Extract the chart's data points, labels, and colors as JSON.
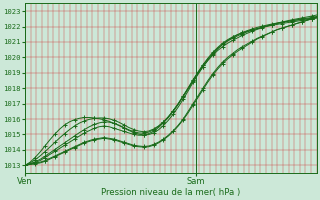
{
  "xlabel": "Pression niveau de la mer( hPa )",
  "ylim": [
    1012.5,
    1023.5
  ],
  "yticks": [
    1013,
    1014,
    1015,
    1016,
    1017,
    1018,
    1019,
    1020,
    1021,
    1022,
    1023
  ],
  "xtick_labels": [
    "Ven",
    "Sam"
  ],
  "xtick_positions": [
    0.0,
    0.585
  ],
  "vline_x": [
    0.0,
    0.585
  ],
  "background_color": "#cce8d8",
  "grid_color": "#cc3333",
  "line_color": "#1a6b1a",
  "series": [
    [
      1013.0,
      1013.05,
      1013.1,
      1013.15,
      1013.25,
      1013.4,
      1013.55,
      1013.7,
      1013.85,
      1014.0,
      1014.15,
      1014.3,
      1014.45,
      1014.55,
      1014.65,
      1014.7,
      1014.75,
      1014.7,
      1014.65,
      1014.55,
      1014.45,
      1014.35,
      1014.25,
      1014.2,
      1014.18,
      1014.2,
      1014.3,
      1014.45,
      1014.65,
      1014.9,
      1015.2,
      1015.55,
      1015.95,
      1016.4,
      1016.9,
      1017.4,
      1017.9,
      1018.4,
      1018.85,
      1019.25,
      1019.6,
      1019.9,
      1020.15,
      1020.4,
      1020.6,
      1020.8,
      1021.0,
      1021.2,
      1021.35,
      1021.5,
      1021.65,
      1021.8,
      1021.9,
      1022.0,
      1022.1,
      1022.2,
      1022.3,
      1022.4,
      1022.5,
      1022.6
    ],
    [
      1013.0,
      1013.06,
      1013.12,
      1013.2,
      1013.3,
      1013.45,
      1013.6,
      1013.75,
      1013.9,
      1014.05,
      1014.2,
      1014.35,
      1014.5,
      1014.6,
      1014.7,
      1014.75,
      1014.8,
      1014.75,
      1014.7,
      1014.6,
      1014.5,
      1014.4,
      1014.3,
      1014.25,
      1014.22,
      1014.25,
      1014.35,
      1014.5,
      1014.7,
      1014.95,
      1015.25,
      1015.6,
      1016.0,
      1016.5,
      1017.0,
      1017.5,
      1018.0,
      1018.5,
      1018.95,
      1019.35,
      1019.7,
      1020.0,
      1020.25,
      1020.5,
      1020.7,
      1020.88,
      1021.06,
      1021.24,
      1021.38,
      1021.52,
      1021.66,
      1021.8,
      1021.9,
      1022.0,
      1022.1,
      1022.2,
      1022.3,
      1022.4,
      1022.5,
      1022.65
    ],
    [
      1013.0,
      1013.08,
      1013.18,
      1013.3,
      1013.5,
      1013.7,
      1013.9,
      1014.1,
      1014.3,
      1014.5,
      1014.7,
      1014.9,
      1015.1,
      1015.25,
      1015.4,
      1015.5,
      1015.55,
      1015.5,
      1015.4,
      1015.3,
      1015.2,
      1015.1,
      1015.0,
      1014.95,
      1014.95,
      1015.05,
      1015.2,
      1015.45,
      1015.75,
      1016.1,
      1016.5,
      1016.95,
      1017.45,
      1017.95,
      1018.45,
      1018.95,
      1019.4,
      1019.8,
      1020.15,
      1020.45,
      1020.7,
      1020.92,
      1021.1,
      1021.27,
      1021.43,
      1021.57,
      1021.7,
      1021.82,
      1021.93,
      1022.03,
      1022.13,
      1022.22,
      1022.3,
      1022.37,
      1022.44,
      1022.5,
      1022.56,
      1022.62,
      1022.68,
      1022.75
    ],
    [
      1013.0,
      1013.1,
      1013.22,
      1013.38,
      1013.58,
      1013.8,
      1014.02,
      1014.24,
      1014.46,
      1014.68,
      1014.9,
      1015.12,
      1015.32,
      1015.5,
      1015.65,
      1015.75,
      1015.82,
      1015.8,
      1015.72,
      1015.6,
      1015.45,
      1015.3,
      1015.18,
      1015.1,
      1015.08,
      1015.15,
      1015.3,
      1015.52,
      1015.8,
      1016.15,
      1016.55,
      1017.0,
      1017.5,
      1018.0,
      1018.52,
      1019.02,
      1019.48,
      1019.9,
      1020.27,
      1020.58,
      1020.84,
      1021.06,
      1021.24,
      1021.4,
      1021.54,
      1021.66,
      1021.77,
      1021.87,
      1021.96,
      1022.05,
      1022.13,
      1022.2,
      1022.27,
      1022.33,
      1022.39,
      1022.44,
      1022.49,
      1022.54,
      1022.59,
      1022.65
    ],
    [
      1013.0,
      1013.15,
      1013.35,
      1013.6,
      1013.88,
      1014.18,
      1014.48,
      1014.78,
      1015.06,
      1015.32,
      1015.55,
      1015.74,
      1015.88,
      1015.98,
      1016.04,
      1016.07,
      1016.07,
      1016.02,
      1015.92,
      1015.79,
      1015.62,
      1015.45,
      1015.32,
      1015.22,
      1015.18,
      1015.22,
      1015.35,
      1015.55,
      1015.82,
      1016.15,
      1016.55,
      1017.0,
      1017.5,
      1018.02,
      1018.55,
      1019.05,
      1019.52,
      1019.95,
      1020.33,
      1020.65,
      1020.93,
      1021.15,
      1021.33,
      1021.48,
      1021.6,
      1021.7,
      1021.79,
      1021.87,
      1021.95,
      1022.02,
      1022.08,
      1022.14,
      1022.2,
      1022.25,
      1022.3,
      1022.35,
      1022.4,
      1022.45,
      1022.5,
      1022.55
    ],
    [
      1013.0,
      1013.2,
      1013.5,
      1013.85,
      1014.25,
      1014.65,
      1015.02,
      1015.35,
      1015.62,
      1015.82,
      1015.96,
      1016.05,
      1016.1,
      1016.1,
      1016.07,
      1016.02,
      1015.95,
      1015.85,
      1015.72,
      1015.58,
      1015.42,
      1015.26,
      1015.12,
      1015.02,
      1014.97,
      1014.99,
      1015.1,
      1015.3,
      1015.58,
      1015.92,
      1016.32,
      1016.78,
      1017.28,
      1017.82,
      1018.38,
      1018.9,
      1019.38,
      1019.82,
      1020.22,
      1020.56,
      1020.85,
      1021.1,
      1021.3,
      1021.47,
      1021.62,
      1021.74,
      1021.85,
      1021.95,
      1022.03,
      1022.1,
      1022.17,
      1022.23,
      1022.28,
      1022.33,
      1022.38,
      1022.42,
      1022.46,
      1022.5,
      1022.54,
      1022.58
    ]
  ]
}
